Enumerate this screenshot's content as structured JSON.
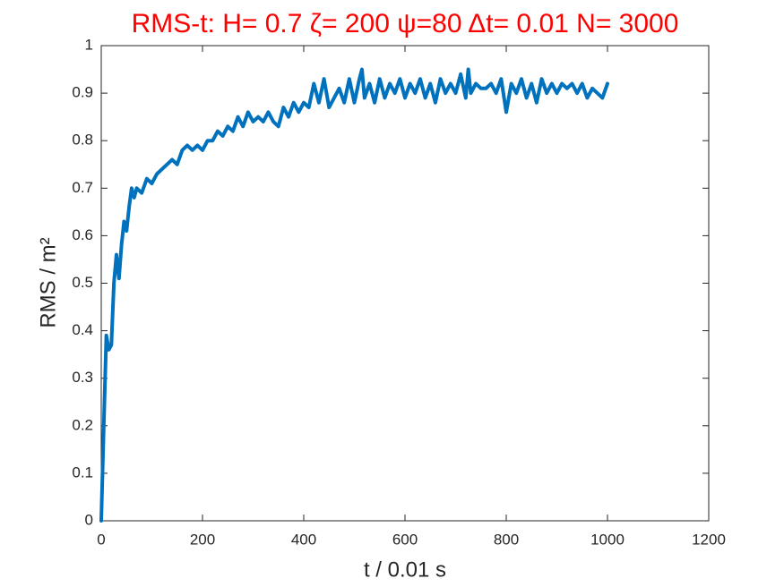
{
  "chart_data": {
    "type": "line",
    "title": "RMS-t:  H= 0.7 ζ= 200 ψ=80 Δt= 0.01 N= 3000",
    "xlabel": "t / 0.01 s",
    "ylabel": "RMS / m²",
    "color": "#0072bd",
    "x": [
      0,
      5,
      10,
      15,
      20,
      25,
      30,
      35,
      40,
      45,
      50,
      55,
      60,
      65,
      70,
      80,
      90,
      100,
      110,
      120,
      130,
      140,
      150,
      160,
      170,
      180,
      190,
      200,
      210,
      220,
      230,
      240,
      250,
      260,
      270,
      280,
      290,
      300,
      310,
      320,
      330,
      340,
      350,
      360,
      370,
      380,
      390,
      400,
      410,
      420,
      430,
      440,
      450,
      460,
      470,
      480,
      490,
      500,
      510,
      515,
      520,
      530,
      540,
      550,
      560,
      570,
      580,
      590,
      600,
      610,
      620,
      630,
      640,
      650,
      660,
      670,
      680,
      690,
      700,
      710,
      720,
      725,
      730,
      740,
      750,
      760,
      770,
      780,
      790,
      800,
      810,
      820,
      830,
      840,
      850,
      860,
      870,
      880,
      890,
      900,
      910,
      920,
      930,
      940,
      950,
      960,
      970,
      980,
      990,
      1000
    ],
    "values": [
      0,
      0.2,
      0.39,
      0.36,
      0.37,
      0.5,
      0.56,
      0.51,
      0.58,
      0.63,
      0.61,
      0.66,
      0.7,
      0.68,
      0.7,
      0.69,
      0.72,
      0.71,
      0.73,
      0.74,
      0.75,
      0.76,
      0.75,
      0.78,
      0.79,
      0.78,
      0.79,
      0.78,
      0.8,
      0.8,
      0.82,
      0.81,
      0.83,
      0.82,
      0.85,
      0.83,
      0.86,
      0.84,
      0.85,
      0.84,
      0.86,
      0.84,
      0.83,
      0.87,
      0.85,
      0.88,
      0.86,
      0.88,
      0.87,
      0.92,
      0.88,
      0.93,
      0.87,
      0.89,
      0.91,
      0.88,
      0.93,
      0.88,
      0.93,
      0.95,
      0.89,
      0.92,
      0.88,
      0.93,
      0.89,
      0.92,
      0.9,
      0.93,
      0.89,
      0.92,
      0.9,
      0.93,
      0.89,
      0.92,
      0.88,
      0.93,
      0.9,
      0.92,
      0.9,
      0.94,
      0.89,
      0.95,
      0.9,
      0.92,
      0.91,
      0.91,
      0.92,
      0.9,
      0.93,
      0.86,
      0.92,
      0.9,
      0.93,
      0.89,
      0.92,
      0.88,
      0.93,
      0.9,
      0.92,
      0.9,
      0.92,
      0.91,
      0.92,
      0.9,
      0.92,
      0.89,
      0.91,
      0.9,
      0.89,
      0.92
    ],
    "xlim": [
      0,
      1200
    ],
    "xticks": [
      0,
      200,
      400,
      600,
      800,
      1000,
      1200
    ],
    "ylim": [
      0,
      1
    ],
    "yticks": [
      0,
      0.1,
      0.2,
      0.3,
      0.4,
      0.5,
      0.6,
      0.7,
      0.8,
      0.9,
      1
    ]
  }
}
